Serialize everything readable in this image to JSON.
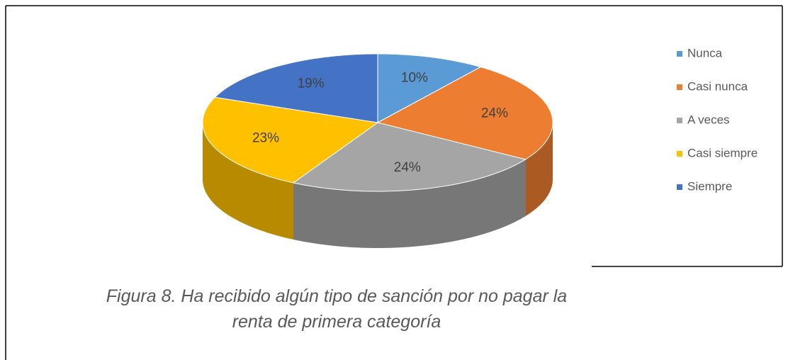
{
  "chart_data": {
    "type": "pie3d",
    "caption": "Figura 8. Ha recibido algún tipo de sanción por no pagar la renta de primera categoría",
    "categories": [
      "Nunca",
      "Casi nunca",
      "A veces",
      "Casi siempre",
      "Siempre"
    ],
    "values": [
      10,
      24,
      24,
      23,
      19
    ],
    "value_labels": [
      "10%",
      "24%",
      "24%",
      "23%",
      "19%"
    ],
    "colors": [
      "#5b9bd5",
      "#ed7d31",
      "#a5a5a5",
      "#ffc000",
      "#4472c4"
    ],
    "legend": "right"
  }
}
